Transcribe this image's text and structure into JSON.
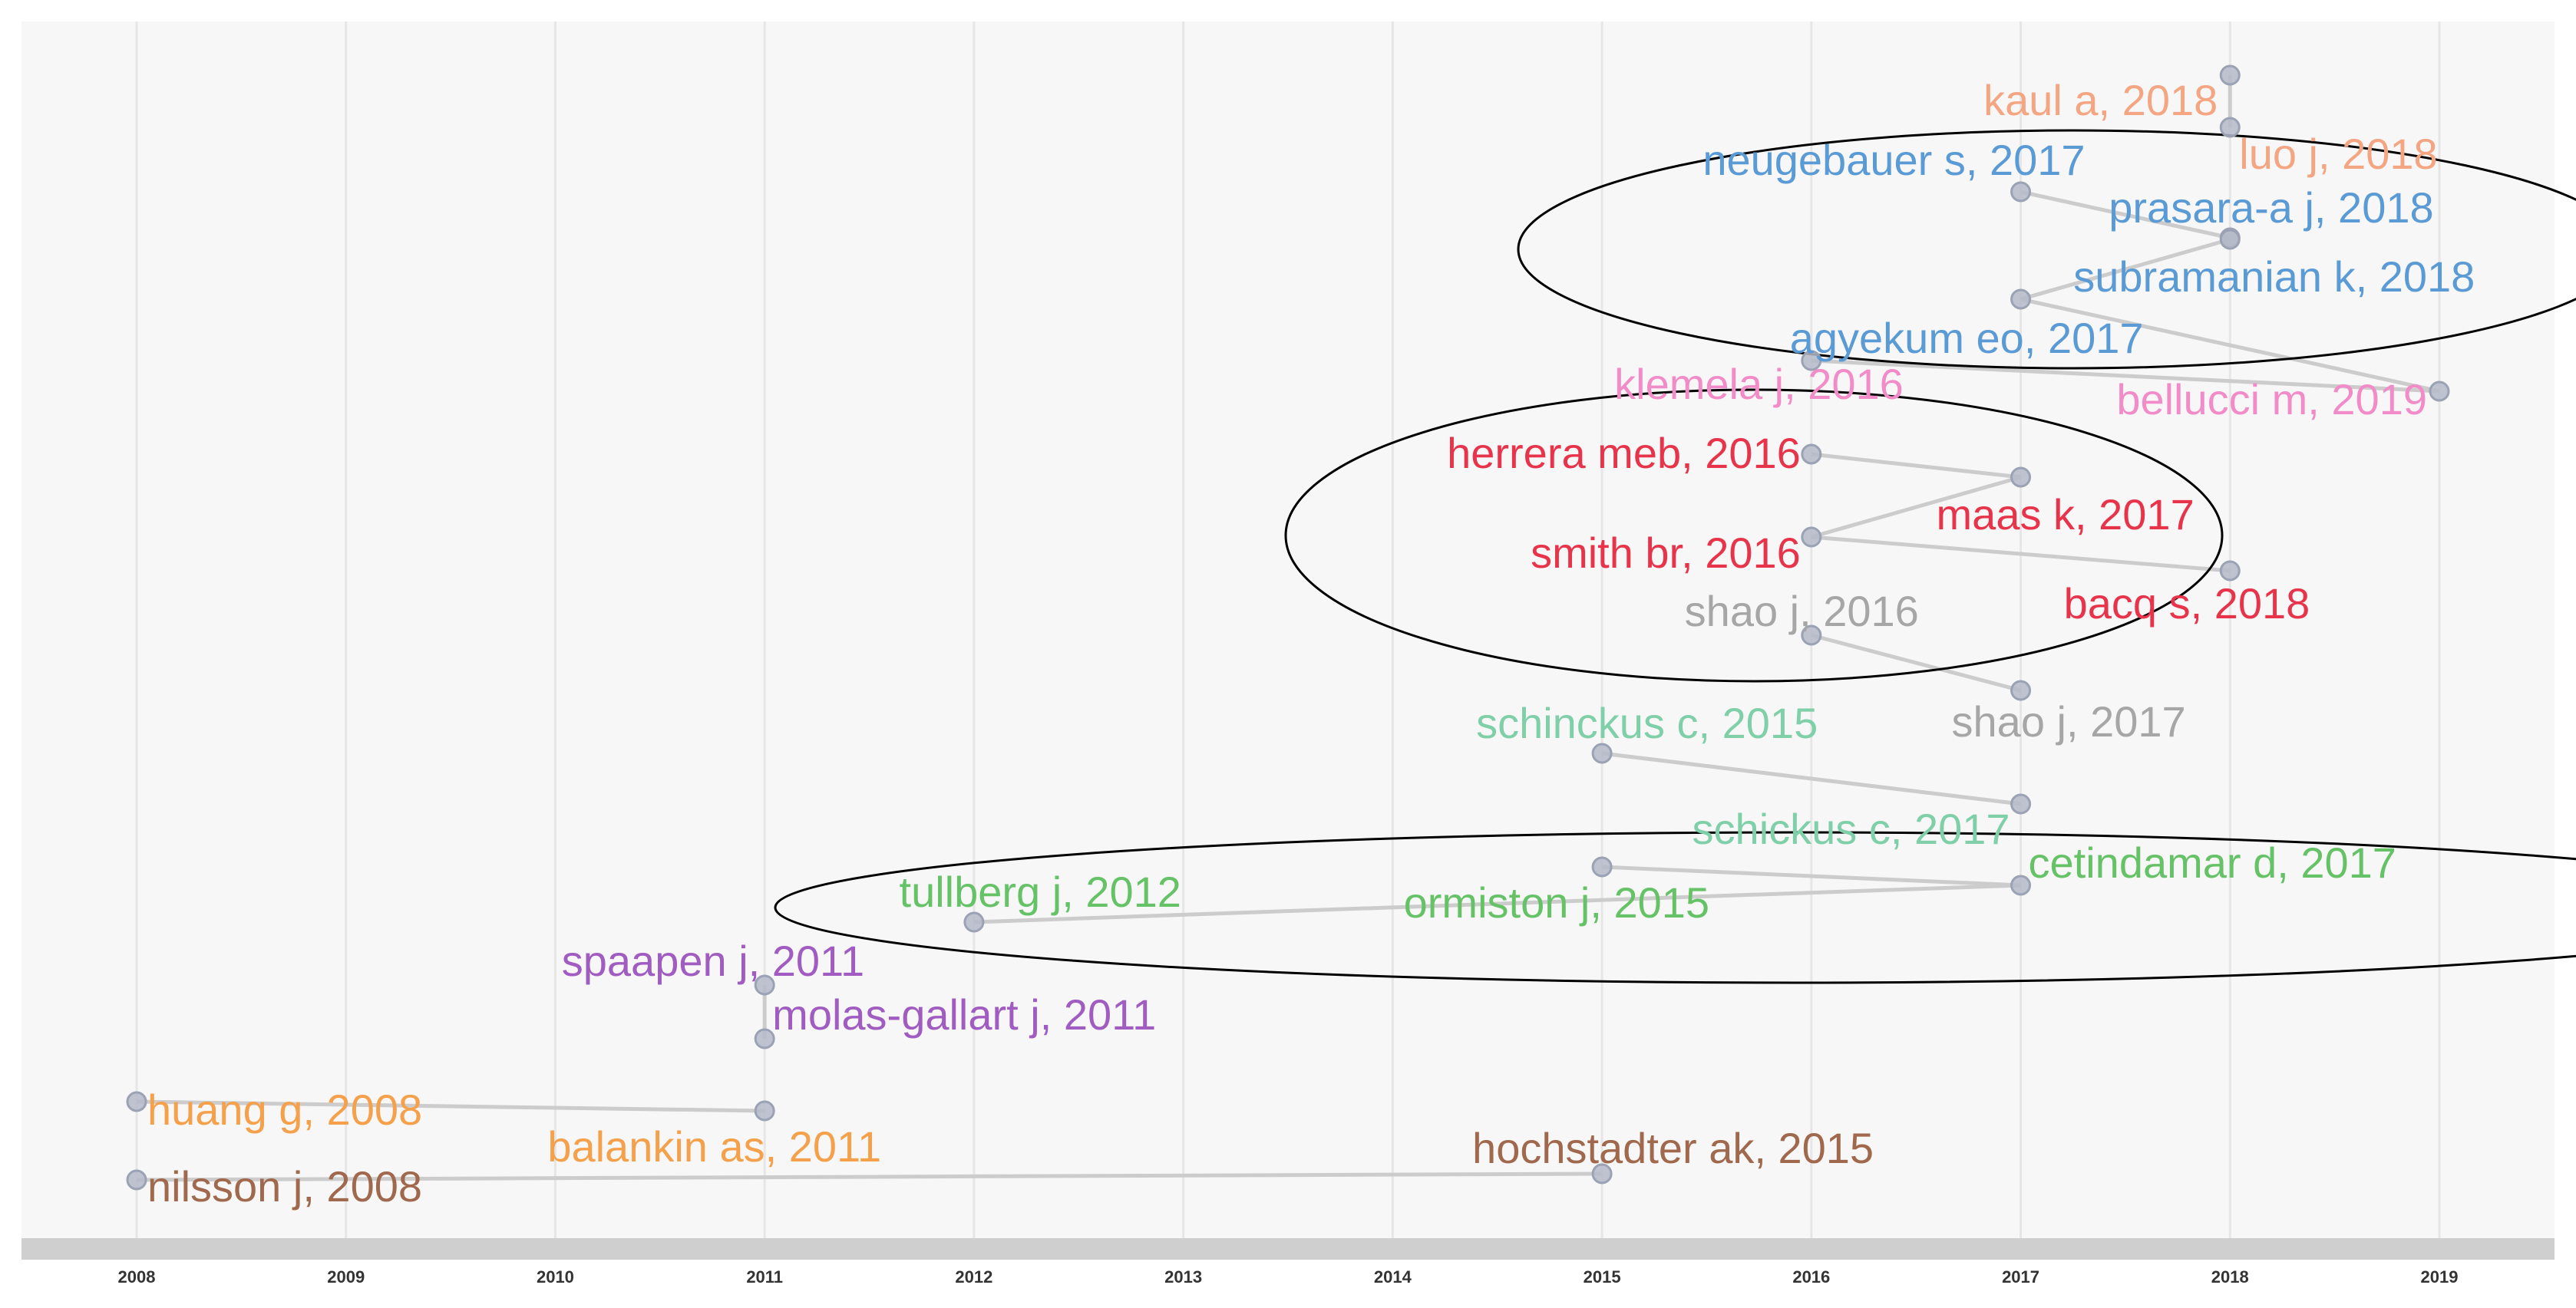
{
  "chart_data": {
    "type": "scatter",
    "title": "",
    "xlabel": "",
    "ylabel": "",
    "xlim": [
      2007.45,
      2019.55
    ],
    "x_ticks": [
      2008,
      2009,
      2010,
      2011,
      2012,
      2013,
      2014,
      2015,
      2016,
      2017,
      2018,
      2019
    ],
    "grid": true,
    "colors": {
      "background": "#f7f7f7",
      "axis_band": "#cfcfcf",
      "grid": "#e6e6e6",
      "edge": "#cccccc",
      "node_fill": "#b4bac8",
      "node_stroke": "#9aa2b4",
      "ellipse": "#000000"
    },
    "nodes": [
      {
        "id": "kaul-a-2018",
        "label": "kaul a, 2018",
        "x": 2018,
        "color": "#f4a582"
      },
      {
        "id": "luo-j-2018",
        "label": "luo j, 2018",
        "x": 2018,
        "color": "#f4a582"
      },
      {
        "id": "neugebauer-s-2017",
        "label": "neugebauer s, 2017",
        "x": 2017,
        "color": "#5b9bd5"
      },
      {
        "id": "prasara-a-j-2018",
        "label": "prasara-a j, 2018",
        "x": 2018,
        "color": "#5b9bd5"
      },
      {
        "id": "subramanian-k-2018",
        "label": "subramanian k, 2018",
        "x": 2018,
        "color": "#5b9bd5"
      },
      {
        "id": "agyekum-eo-2017",
        "label": "agyekum eo, 2017",
        "x": 2017,
        "color": "#5b9bd5"
      },
      {
        "id": "klemela-j-2016",
        "label": "klemela j, 2016",
        "x": 2016,
        "color": "#f28cc8"
      },
      {
        "id": "bellucci-m-2019",
        "label": "bellucci m, 2019",
        "x": 2019,
        "color": "#f28cc8"
      },
      {
        "id": "herrera-meb-2016",
        "label": "herrera meb, 2016",
        "x": 2016,
        "color": "#e8344a"
      },
      {
        "id": "maas-k-2017",
        "label": "maas k, 2017",
        "x": 2017,
        "color": "#e8344a"
      },
      {
        "id": "smith-br-2016",
        "label": "smith br, 2016",
        "x": 2016,
        "color": "#e8344a"
      },
      {
        "id": "bacq-s-2018",
        "label": "bacq s, 2018",
        "x": 2018,
        "color": "#e8344a"
      },
      {
        "id": "shao-j-2016",
        "label": "shao j, 2016",
        "x": 2016,
        "color": "#a6a6a6"
      },
      {
        "id": "shao-j-2017",
        "label": "shao j, 2017",
        "x": 2017,
        "color": "#a6a6a6"
      },
      {
        "id": "schinckus-c-2015",
        "label": "schinckus c, 2015",
        "x": 2015,
        "color": "#7fcfa8"
      },
      {
        "id": "schickus-c-2017",
        "label": "schickus c, 2017",
        "x": 2017,
        "color": "#7fcfa8"
      },
      {
        "id": "cetindamar-d-2017",
        "label": "cetindamar d, 2017",
        "x": 2017,
        "color": "#66c266"
      },
      {
        "id": "tullberg-j-2012",
        "label": "tullberg j, 2012",
        "x": 2012,
        "color": "#66c266"
      },
      {
        "id": "ormiston-j-2015",
        "label": "ormiston j, 2015",
        "x": 2015,
        "color": "#66c266"
      },
      {
        "id": "spaapen-j-2011",
        "label": "spaapen j, 2011",
        "x": 2011,
        "color": "#a05cc0"
      },
      {
        "id": "molas-gallart-j-2011",
        "label": "molas-gallart j, 2011",
        "x": 2011,
        "color": "#a05cc0"
      },
      {
        "id": "huang-g-2008",
        "label": "huang g, 2008",
        "x": 2008,
        "color": "#f5a04a"
      },
      {
        "id": "balankin-as-2011",
        "label": "balankin as, 2011",
        "x": 2011,
        "color": "#f5a04a"
      },
      {
        "id": "nilsson-j-2008",
        "label": "nilsson j, 2008",
        "x": 2008,
        "color": "#a0684c"
      },
      {
        "id": "hochstadter-ak-2015",
        "label": "hochstadter ak, 2015",
        "x": 2015,
        "color": "#a0684c"
      }
    ],
    "edges": [
      [
        "kaul-a-2018",
        "luo-j-2018"
      ],
      [
        "neugebauer-s-2017",
        "prasara-a-j-2018"
      ],
      [
        "prasara-a-j-2018",
        "subramanian-k-2018"
      ],
      [
        "subramanian-k-2018",
        "agyekum-eo-2017"
      ],
      [
        "agyekum-eo-2017",
        "bellucci-m-2019"
      ],
      [
        "klemela-j-2016",
        "bellucci-m-2019"
      ],
      [
        "herrera-meb-2016",
        "maas-k-2017"
      ],
      [
        "maas-k-2017",
        "smith-br-2016"
      ],
      [
        "smith-br-2016",
        "bacq-s-2018"
      ],
      [
        "shao-j-2016",
        "shao-j-2017"
      ],
      [
        "schinckus-c-2015",
        "schickus-c-2017"
      ],
      [
        "ormiston-j-2015",
        "cetindamar-d-2017"
      ],
      [
        "tullberg-j-2012",
        "cetindamar-d-2017"
      ],
      [
        "spaapen-j-2011",
        "molas-gallart-j-2011"
      ],
      [
        "huang-g-2008",
        "balankin-as-2011"
      ],
      [
        "nilsson-j-2008",
        "hochstadter-ak-2015"
      ]
    ],
    "highlighted_groups": [
      [
        "neugebauer-s-2017",
        "prasara-a-j-2018",
        "subramanian-k-2018",
        "agyekum-eo-2017"
      ],
      [
        "herrera-meb-2016",
        "maas-k-2017",
        "smith-br-2016",
        "bacq-s-2018"
      ],
      [
        "tullberg-j-2012",
        "ormiston-j-2015",
        "schickus-c-2017",
        "cetindamar-d-2017"
      ]
    ]
  }
}
